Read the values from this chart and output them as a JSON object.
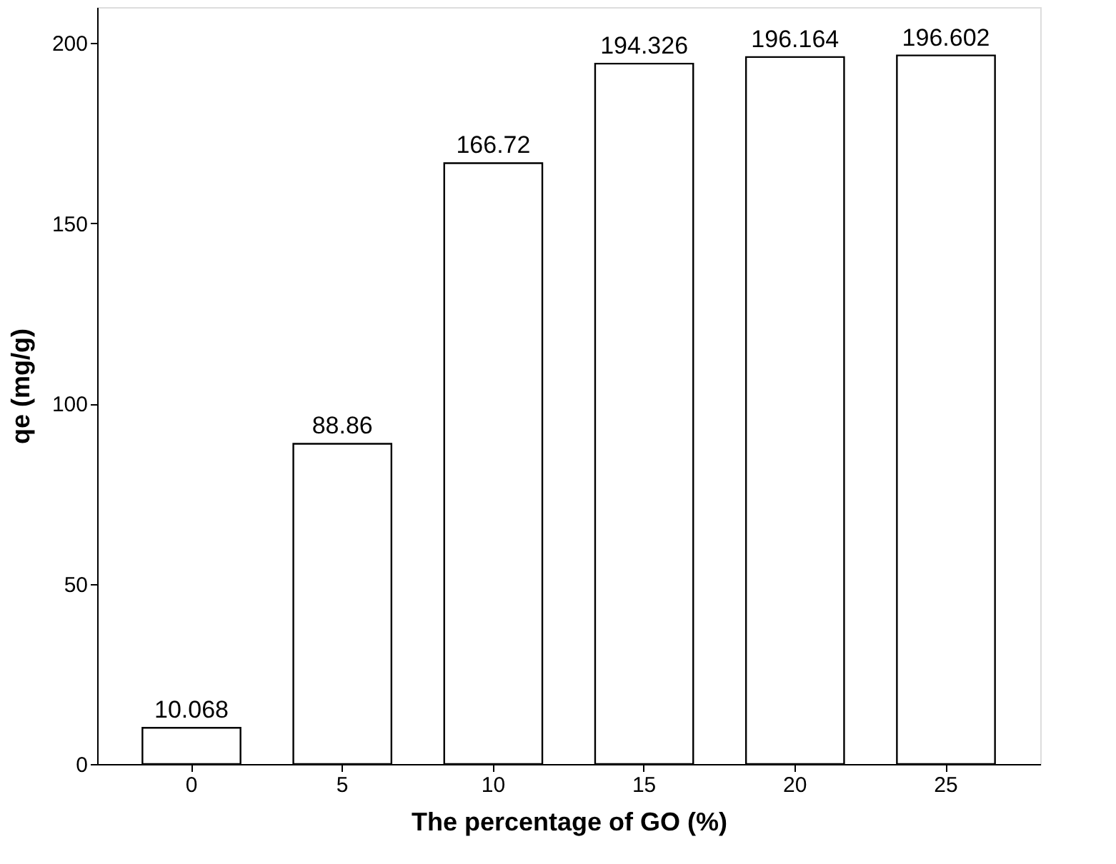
{
  "chart_data": {
    "type": "bar",
    "xlabel": "The percentage of GO (%)",
    "ylabel": "qe (mg/g)",
    "categories": [
      "0",
      "5",
      "10",
      "15",
      "20",
      "25"
    ],
    "values": [
      10.068,
      88.86,
      166.72,
      194.326,
      196.164,
      196.602
    ],
    "color": "#ffffff",
    "ylim": [
      0,
      210
    ],
    "yticks": [
      0,
      50,
      100,
      150,
      200
    ],
    "grid": false,
    "data_labels": true
  }
}
